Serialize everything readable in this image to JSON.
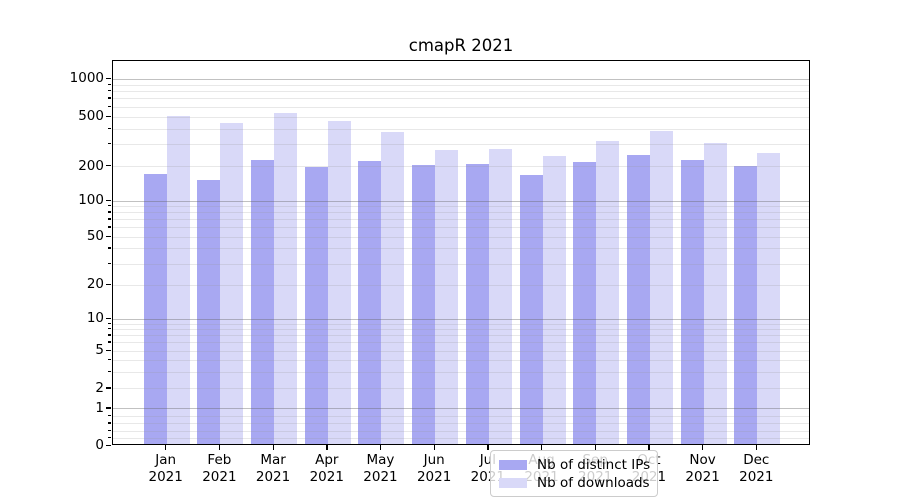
{
  "chart_data": {
    "type": "bar",
    "title": "cmapR 2021",
    "categories": [
      "Jan",
      "Feb",
      "Mar",
      "Apr",
      "May",
      "Jun",
      "Jul",
      "Aug",
      "Sep",
      "Oct",
      "Nov",
      "Dec"
    ],
    "year_label": "2021",
    "series": [
      {
        "name": "Nb of distinct IPs",
        "color": "#a8a8f2",
        "values": [
          165,
          146,
          220,
          190,
          214,
          197,
          202,
          163,
          212,
          240,
          219,
          196
        ]
      },
      {
        "name": "Nb of downloads",
        "color": "#d9d9f8",
        "values": [
          490,
          430,
          520,
          450,
          365,
          264,
          269,
          234,
          310,
          370,
          297,
          248
        ]
      }
    ],
    "y_ticks": [
      0,
      1,
      2,
      5,
      10,
      20,
      50,
      100,
      200,
      500,
      1000
    ],
    "y_minor_gridlines": [
      0.2,
      0.4,
      0.6,
      0.8,
      3,
      4,
      6,
      7,
      8,
      9,
      30,
      40,
      60,
      70,
      80,
      90,
      300,
      400,
      600,
      700,
      800,
      900
    ],
    "y_scale": "symlog",
    "ylim": [
      0,
      1450
    ],
    "grid": true,
    "legend_position": "lower center",
    "colors": {
      "axis": "#000000",
      "major_grid": "#c8c8c8",
      "minor_grid": "#ececec",
      "background": "#ffffff"
    }
  }
}
